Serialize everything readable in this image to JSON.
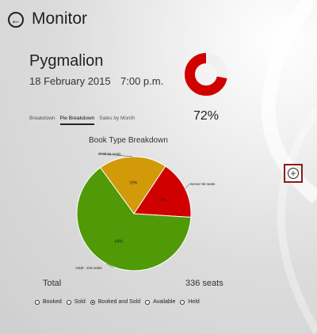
{
  "header": {
    "back_icon": "back-arrow-icon",
    "title": "Monitor"
  },
  "event": {
    "name": "Pygmalion",
    "date": "18 February 2015",
    "time": "7:00 p.m."
  },
  "tabs": [
    {
      "label": "Breakdown",
      "active": false
    },
    {
      "label": "Pie Breakdown",
      "active": true
    },
    {
      "label": "Sales by Month",
      "active": false
    }
  ],
  "occupancy": {
    "percent_label": "72%",
    "value": 0.72,
    "color": "#d10000"
  },
  "chart_data": {
    "type": "pie",
    "title": "Book Type Breakdown",
    "categories": [
      "Child 65 seats",
      "Senior 56 seats",
      "Adult - 215 seats"
    ],
    "values": [
      65,
      56,
      215
    ],
    "percent_labels": [
      "19%",
      "17%",
      "64%"
    ],
    "colors": [
      "#d29a09",
      "#d10000",
      "#4f9a06"
    ]
  },
  "total": {
    "label": "Total",
    "value": "336 seats"
  },
  "filters": [
    {
      "label": "Booked",
      "selected": false
    },
    {
      "label": "Sold",
      "selected": false
    },
    {
      "label": "Booked and Sold",
      "selected": true
    },
    {
      "label": "Available",
      "selected": false
    },
    {
      "label": "Held",
      "selected": false
    }
  ],
  "actions": {
    "add_icon": "add-circle-icon"
  }
}
